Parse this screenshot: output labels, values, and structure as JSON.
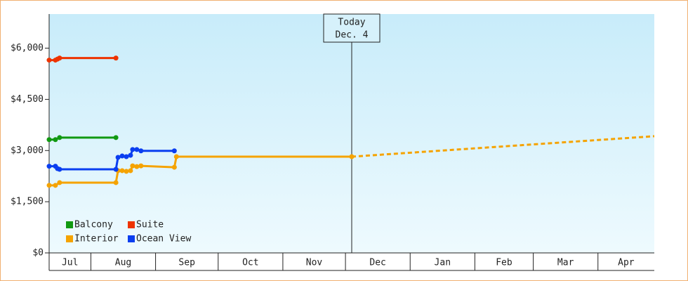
{
  "chart_data": {
    "type": "line",
    "xlim": [
      0,
      290
    ],
    "xticks": [
      {
        "value": 0,
        "label": "Jul"
      },
      {
        "value": 20,
        "label": "Aug"
      },
      {
        "value": 51,
        "label": "Sep"
      },
      {
        "value": 81,
        "label": "Oct"
      },
      {
        "value": 112,
        "label": "Nov"
      },
      {
        "value": 142,
        "label": "Dec"
      },
      {
        "value": 173,
        "label": "Jan"
      },
      {
        "value": 204,
        "label": "Feb"
      },
      {
        "value": 232,
        "label": "Mar"
      },
      {
        "value": 263,
        "label": "Apr"
      }
    ],
    "ylim": [
      0,
      7000
    ],
    "yticks": [
      {
        "value": 0,
        "label": "$0"
      },
      {
        "value": 1500,
        "label": "$1,500"
      },
      {
        "value": 3000,
        "label": "$3,000"
      },
      {
        "value": 4500,
        "label": "$4,500"
      },
      {
        "value": 6000,
        "label": "$6,000"
      }
    ],
    "legend": "bottom-left",
    "annotation": {
      "x": 145,
      "lines": [
        "Today",
        "Dec. 4"
      ]
    },
    "series": [
      {
        "name": "Balcony",
        "color": "#119911",
        "x": [
          0,
          3,
          5,
          32
        ],
        "values": [
          3320,
          3320,
          3380,
          3380
        ]
      },
      {
        "name": "Suite",
        "color": "#ee3300",
        "x": [
          0,
          3,
          4,
          5,
          32
        ],
        "values": [
          5650,
          5650,
          5680,
          5710,
          5710
        ]
      },
      {
        "name": "Interior",
        "color": "#f5a300",
        "x": [
          0,
          3,
          5,
          32,
          33,
          35,
          37,
          39,
          40,
          42,
          44,
          60,
          61,
          145
        ],
        "values": [
          1980,
          1980,
          2060,
          2060,
          2410,
          2410,
          2390,
          2410,
          2550,
          2530,
          2550,
          2510,
          2820,
          2820
        ]
      },
      {
        "name": "Ocean View",
        "color": "#0a3ef0",
        "x": [
          0,
          3,
          4,
          5,
          32,
          33,
          35,
          37,
          39,
          40,
          42,
          44,
          60
        ],
        "values": [
          2540,
          2540,
          2470,
          2450,
          2450,
          2800,
          2840,
          2820,
          2860,
          3030,
          3030,
          2990,
          2990
        ]
      },
      {
        "color": "#f5a300",
        "style": "dashed",
        "markers": false,
        "x": [
          145,
          290
        ],
        "values": [
          2820,
          3420
        ]
      }
    ]
  }
}
